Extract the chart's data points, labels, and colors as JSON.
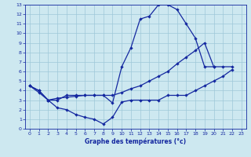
{
  "line1_x": [
    0,
    1,
    2,
    3,
    4,
    5,
    6,
    7,
    8,
    9,
    10,
    11,
    12,
    13,
    14,
    15,
    16,
    17,
    18,
    19,
    20
  ],
  "line1_y": [
    4.5,
    4.0,
    3.0,
    3.0,
    3.5,
    3.5,
    3.5,
    3.5,
    3.5,
    2.7,
    6.5,
    8.5,
    11.5,
    11.8,
    13.0,
    13.0,
    12.5,
    11.0,
    9.5,
    6.5,
    6.5
  ],
  "line2_x": [
    0,
    1,
    2,
    3,
    4,
    5,
    6,
    7,
    8,
    9,
    10,
    11,
    12,
    13,
    14,
    15,
    16,
    17,
    18,
    19,
    20,
    21,
    22
  ],
  "line2_y": [
    4.5,
    4.0,
    3.0,
    3.2,
    3.3,
    3.4,
    3.5,
    3.5,
    3.5,
    3.5,
    3.8,
    4.2,
    4.5,
    5.0,
    5.5,
    6.0,
    6.8,
    7.5,
    8.2,
    9.0,
    6.5,
    6.5,
    6.5
  ],
  "line3_x": [
    0,
    1,
    2,
    3,
    4,
    5,
    6,
    7,
    8,
    9,
    10,
    11,
    12,
    13,
    14,
    15,
    16,
    17,
    18,
    19,
    20,
    21,
    22
  ],
  "line3_y": [
    4.5,
    3.8,
    3.0,
    2.2,
    2.0,
    1.5,
    1.2,
    1.0,
    0.5,
    1.2,
    2.8,
    3.0,
    3.0,
    3.0,
    3.0,
    3.5,
    3.5,
    3.5,
    4.0,
    4.5,
    5.0,
    5.5,
    6.2
  ],
  "bg_color": "#cde8f0",
  "grid_color": "#9ec8d8",
  "line_color": "#1428a0",
  "xlabel": "Graphe des températures (°c)",
  "xlim": [
    -0.5,
    23.5
  ],
  "ylim": [
    0,
    13
  ],
  "xticks": [
    0,
    1,
    2,
    3,
    4,
    5,
    6,
    7,
    8,
    9,
    10,
    11,
    12,
    13,
    14,
    15,
    16,
    17,
    18,
    19,
    20,
    21,
    22,
    23
  ],
  "yticks": [
    0,
    1,
    2,
    3,
    4,
    5,
    6,
    7,
    8,
    9,
    10,
    11,
    12,
    13
  ]
}
